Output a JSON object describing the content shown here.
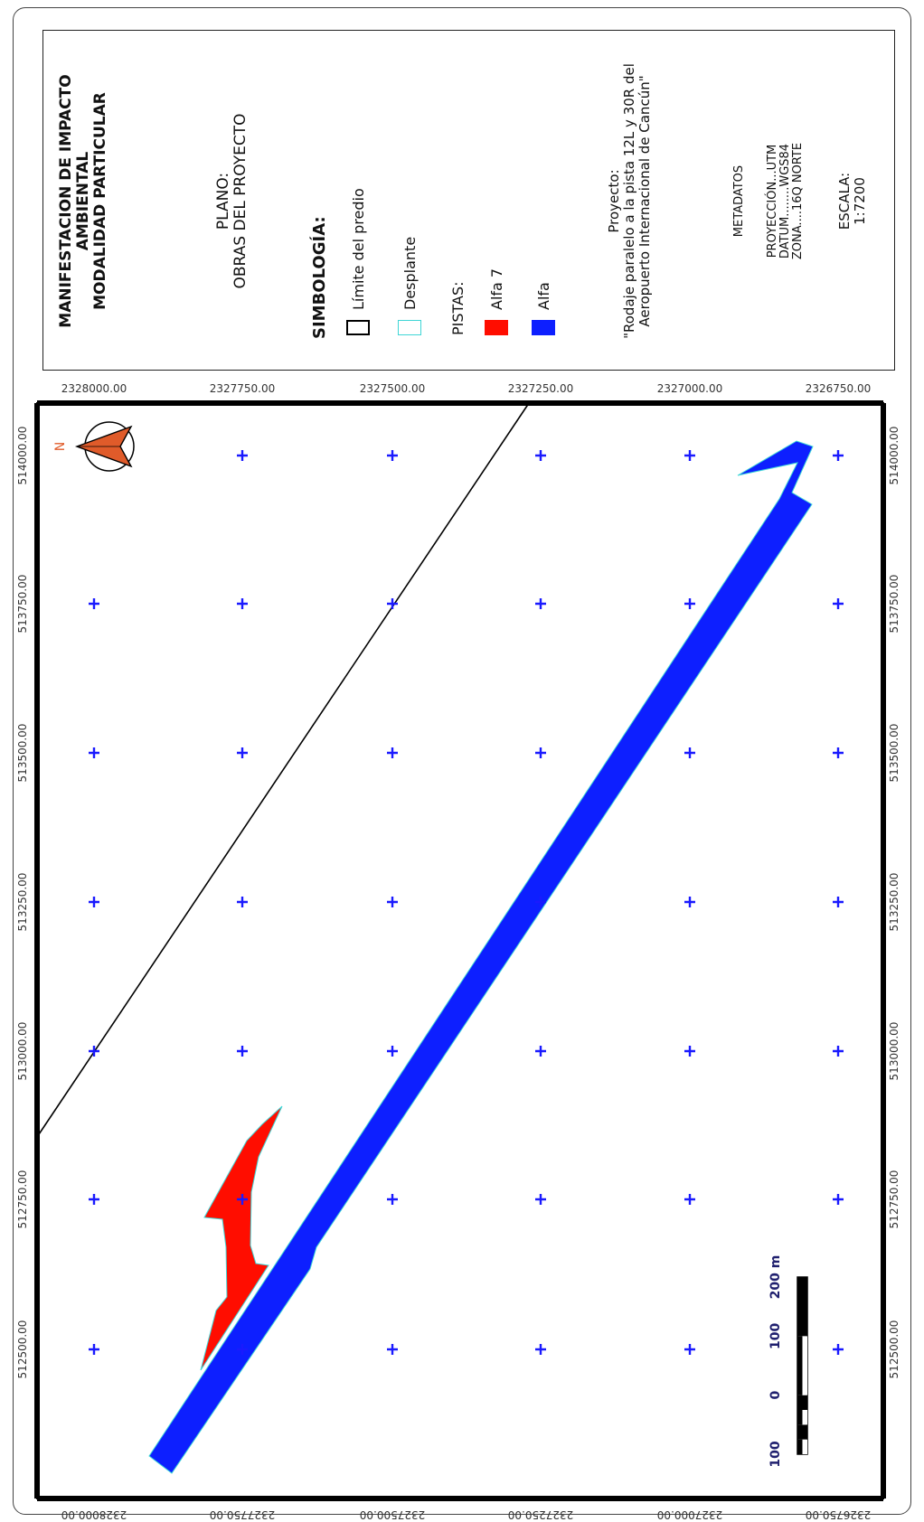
{
  "legend": {
    "title_line1": "MANIFESTACION DE IMPACTO",
    "title_line2": "AMBIENTAL",
    "title_line3": "MODALIDAD PARTICULAR",
    "plano_label": "PLANO:",
    "plano_name": "OBRAS DEL PROYECTO",
    "simbologia": "SIMBOLOGÍA:",
    "limite": "Límite del predio",
    "desplante": "Desplante",
    "pistas": "PISTAS:",
    "alfa7": "Alfa 7",
    "alfa": "Alfa",
    "proyecto_label": "Proyecto:",
    "proyecto_line1": "\"Rodaje paralelo a la pista 12L y 30R del",
    "proyecto_line2": "Aeropuerto Internacional de Cancún\"",
    "metadatos": "METADATOS",
    "proyeccion": "PROYECCIÓN...UTM",
    "datum": "DATUM........WGS84",
    "zona": "ZONA....16Q NORTE",
    "escala_label": "ESCALA:",
    "escala_value": "1:7200"
  },
  "colors": {
    "alfa7": "#ff0d00",
    "alfa": "#0d1fff",
    "desplante": "#3fd6d6",
    "limite": "#000000",
    "grid_cross": "#1a1aff",
    "tick_label": "#333333",
    "scale_label": "#1f1f6e",
    "north_fill": "#e05b2a"
  },
  "map": {
    "north_label": "N",
    "easting_ticks": [
      "512500.00",
      "512750.00",
      "513000.00",
      "513250.00",
      "513500.00",
      "513750.00",
      "514000.00"
    ],
    "northing_ticks": [
      "2328000.00",
      "2327750.00",
      "2327500.00",
      "2327250.00",
      "2327000.00",
      "2326750.00"
    ],
    "scale_bar": {
      "labels": [
        "100",
        "0",
        "100",
        "200 m"
      ],
      "values_m": [
        -100,
        0,
        100,
        200
      ]
    }
  }
}
